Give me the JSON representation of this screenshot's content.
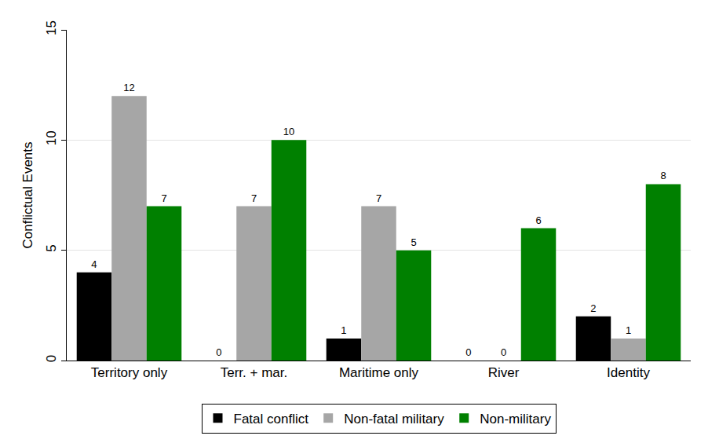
{
  "chart_data": {
    "type": "bar",
    "y_label": "Conflictual Events",
    "categories": [
      "Territory only",
      "Terr. + mar.",
      "Maritime only",
      "River",
      "Identity"
    ],
    "series": [
      {
        "name": "Fatal conflict",
        "color": "#000000",
        "values": [
          4,
          0,
          1,
          0,
          2
        ]
      },
      {
        "name": "Non-fatal military",
        "color": "#a6a6a6",
        "values": [
          12,
          7,
          7,
          0,
          1
        ]
      },
      {
        "name": "Non-military",
        "color": "#008000",
        "values": [
          7,
          10,
          5,
          6,
          8
        ]
      }
    ],
    "ylim": [
      0,
      15
    ],
    "yticks": [
      0,
      5,
      10,
      15
    ],
    "grid": true,
    "legend": "bottom",
    "data_labels": true
  }
}
